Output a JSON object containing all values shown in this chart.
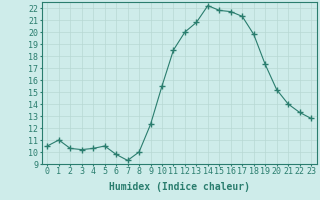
{
  "x": [
    0,
    1,
    2,
    3,
    4,
    5,
    6,
    7,
    8,
    9,
    10,
    11,
    12,
    13,
    14,
    15,
    16,
    17,
    18,
    19,
    20,
    21,
    22,
    23
  ],
  "y": [
    10.5,
    11.0,
    10.3,
    10.2,
    10.3,
    10.5,
    9.8,
    9.3,
    10.0,
    12.3,
    15.5,
    18.5,
    20.0,
    20.8,
    22.2,
    21.8,
    21.7,
    21.3,
    19.8,
    17.3,
    15.2,
    14.0,
    13.3,
    12.8
  ],
  "line_color": "#2a7d6e",
  "marker": "+",
  "marker_size": 4,
  "bg_color": "#ceecea",
  "grid_color": "#b8d8d4",
  "xlabel": "Humidex (Indice chaleur)",
  "xlim": [
    -0.5,
    23.5
  ],
  "ylim": [
    9,
    22.5
  ],
  "xticks": [
    0,
    1,
    2,
    3,
    4,
    5,
    6,
    7,
    8,
    9,
    10,
    11,
    12,
    13,
    14,
    15,
    16,
    17,
    18,
    19,
    20,
    21,
    22,
    23
  ],
  "yticks": [
    9,
    10,
    11,
    12,
    13,
    14,
    15,
    16,
    17,
    18,
    19,
    20,
    21,
    22
  ],
  "tick_label_size": 6,
  "xlabel_size": 7,
  "axis_color": "#2a7d6e"
}
